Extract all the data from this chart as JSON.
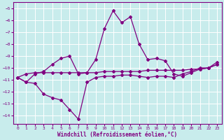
{
  "xlabel": "Windchill (Refroidissement éolien,°C)",
  "background_color": "#c8ecec",
  "line_color": "#800080",
  "grid_color": "#b8dada",
  "xlim": [
    -0.5,
    23.5
  ],
  "ylim": [
    -14.7,
    -4.5
  ],
  "yticks": [
    -14,
    -13,
    -12,
    -11,
    -10,
    -9,
    -8,
    -7,
    -6,
    -5
  ],
  "xticks": [
    0,
    1,
    2,
    3,
    4,
    5,
    6,
    7,
    8,
    9,
    10,
    11,
    12,
    13,
    14,
    15,
    16,
    17,
    18,
    19,
    20,
    21,
    22,
    23
  ],
  "series": [
    {
      "x": [
        0,
        1,
        2,
        3,
        4,
        5,
        6,
        7,
        8,
        9,
        10,
        11,
        12,
        13,
        14,
        15,
        16,
        17,
        18,
        19,
        20,
        21,
        22,
        23
      ],
      "y": [
        -10.8,
        -11.2,
        -10.5,
        -10.3,
        -9.7,
        -9.2,
        -9.0,
        -10.5,
        -10.4,
        -9.3,
        -6.7,
        -5.2,
        -6.2,
        -5.7,
        -8.0,
        -9.3,
        -9.2,
        -9.4,
        -10.5,
        -10.7,
        -10.4,
        -10.1,
        -10.0,
        -9.5
      ]
    },
    {
      "x": [
        0,
        1,
        2,
        3,
        4,
        5,
        6,
        7,
        8,
        9,
        10,
        11,
        12,
        13,
        14,
        15,
        16,
        17,
        18,
        19,
        20,
        21,
        22,
        23
      ],
      "y": [
        -10.8,
        -10.5,
        -10.4,
        -10.4,
        -10.4,
        -10.4,
        -10.4,
        -10.4,
        -10.4,
        -10.4,
        -10.3,
        -10.3,
        -10.3,
        -10.3,
        -10.3,
        -10.2,
        -10.2,
        -10.2,
        -10.2,
        -10.2,
        -10.1,
        -10.1,
        -10.0,
        -9.7
      ]
    },
    {
      "x": [
        0,
        1,
        2,
        3,
        4,
        5,
        6,
        7,
        8,
        9,
        10,
        11,
        12,
        13,
        14,
        15,
        16,
        17,
        18,
        19,
        20,
        21,
        22,
        23
      ],
      "y": [
        -10.8,
        -11.2,
        -11.3,
        -12.2,
        -12.5,
        -12.7,
        -13.5,
        -14.3,
        -11.2,
        -10.8,
        -10.7,
        -10.7,
        -10.6,
        -10.6,
        -10.7,
        -10.8,
        -10.7,
        -10.7,
        -10.8,
        -10.5,
        -10.3,
        -10.0,
        -10.0,
        -9.7
      ]
    }
  ]
}
